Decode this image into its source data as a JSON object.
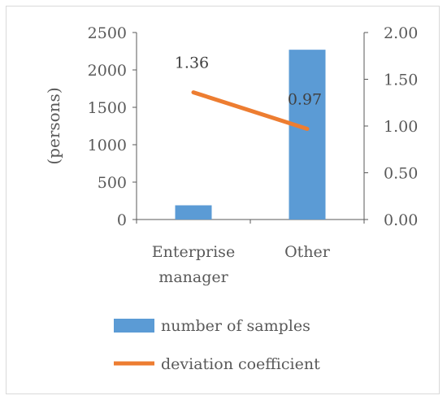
{
  "chart_data": {
    "type": "bar",
    "categories": [
      "Enterprise manager",
      "Other"
    ],
    "category_lines": [
      [
        "Enterprise",
        "manager"
      ],
      [
        "Other"
      ]
    ],
    "series": [
      {
        "name": "number of samples",
        "type": "bar",
        "axis": "left",
        "values": [
          190,
          2270
        ],
        "color": "#5b9bd5"
      },
      {
        "name": "deviation coefficient",
        "type": "line",
        "axis": "right",
        "values": [
          1.36,
          0.97
        ],
        "data_labels": [
          "1.36",
          "0.97"
        ],
        "color": "#ed7d31"
      }
    ],
    "ylabel": "(persons)",
    "ylim": [
      0,
      2500
    ],
    "y_ticks": [
      "0",
      "500",
      "1000",
      "1500",
      "2000",
      "2500"
    ],
    "y2lim": [
      0,
      2
    ],
    "y2_ticks": [
      "0.00",
      "0.50",
      "1.00",
      "1.50",
      "2.00"
    ],
    "grid": false,
    "legend_position": "bottom"
  }
}
